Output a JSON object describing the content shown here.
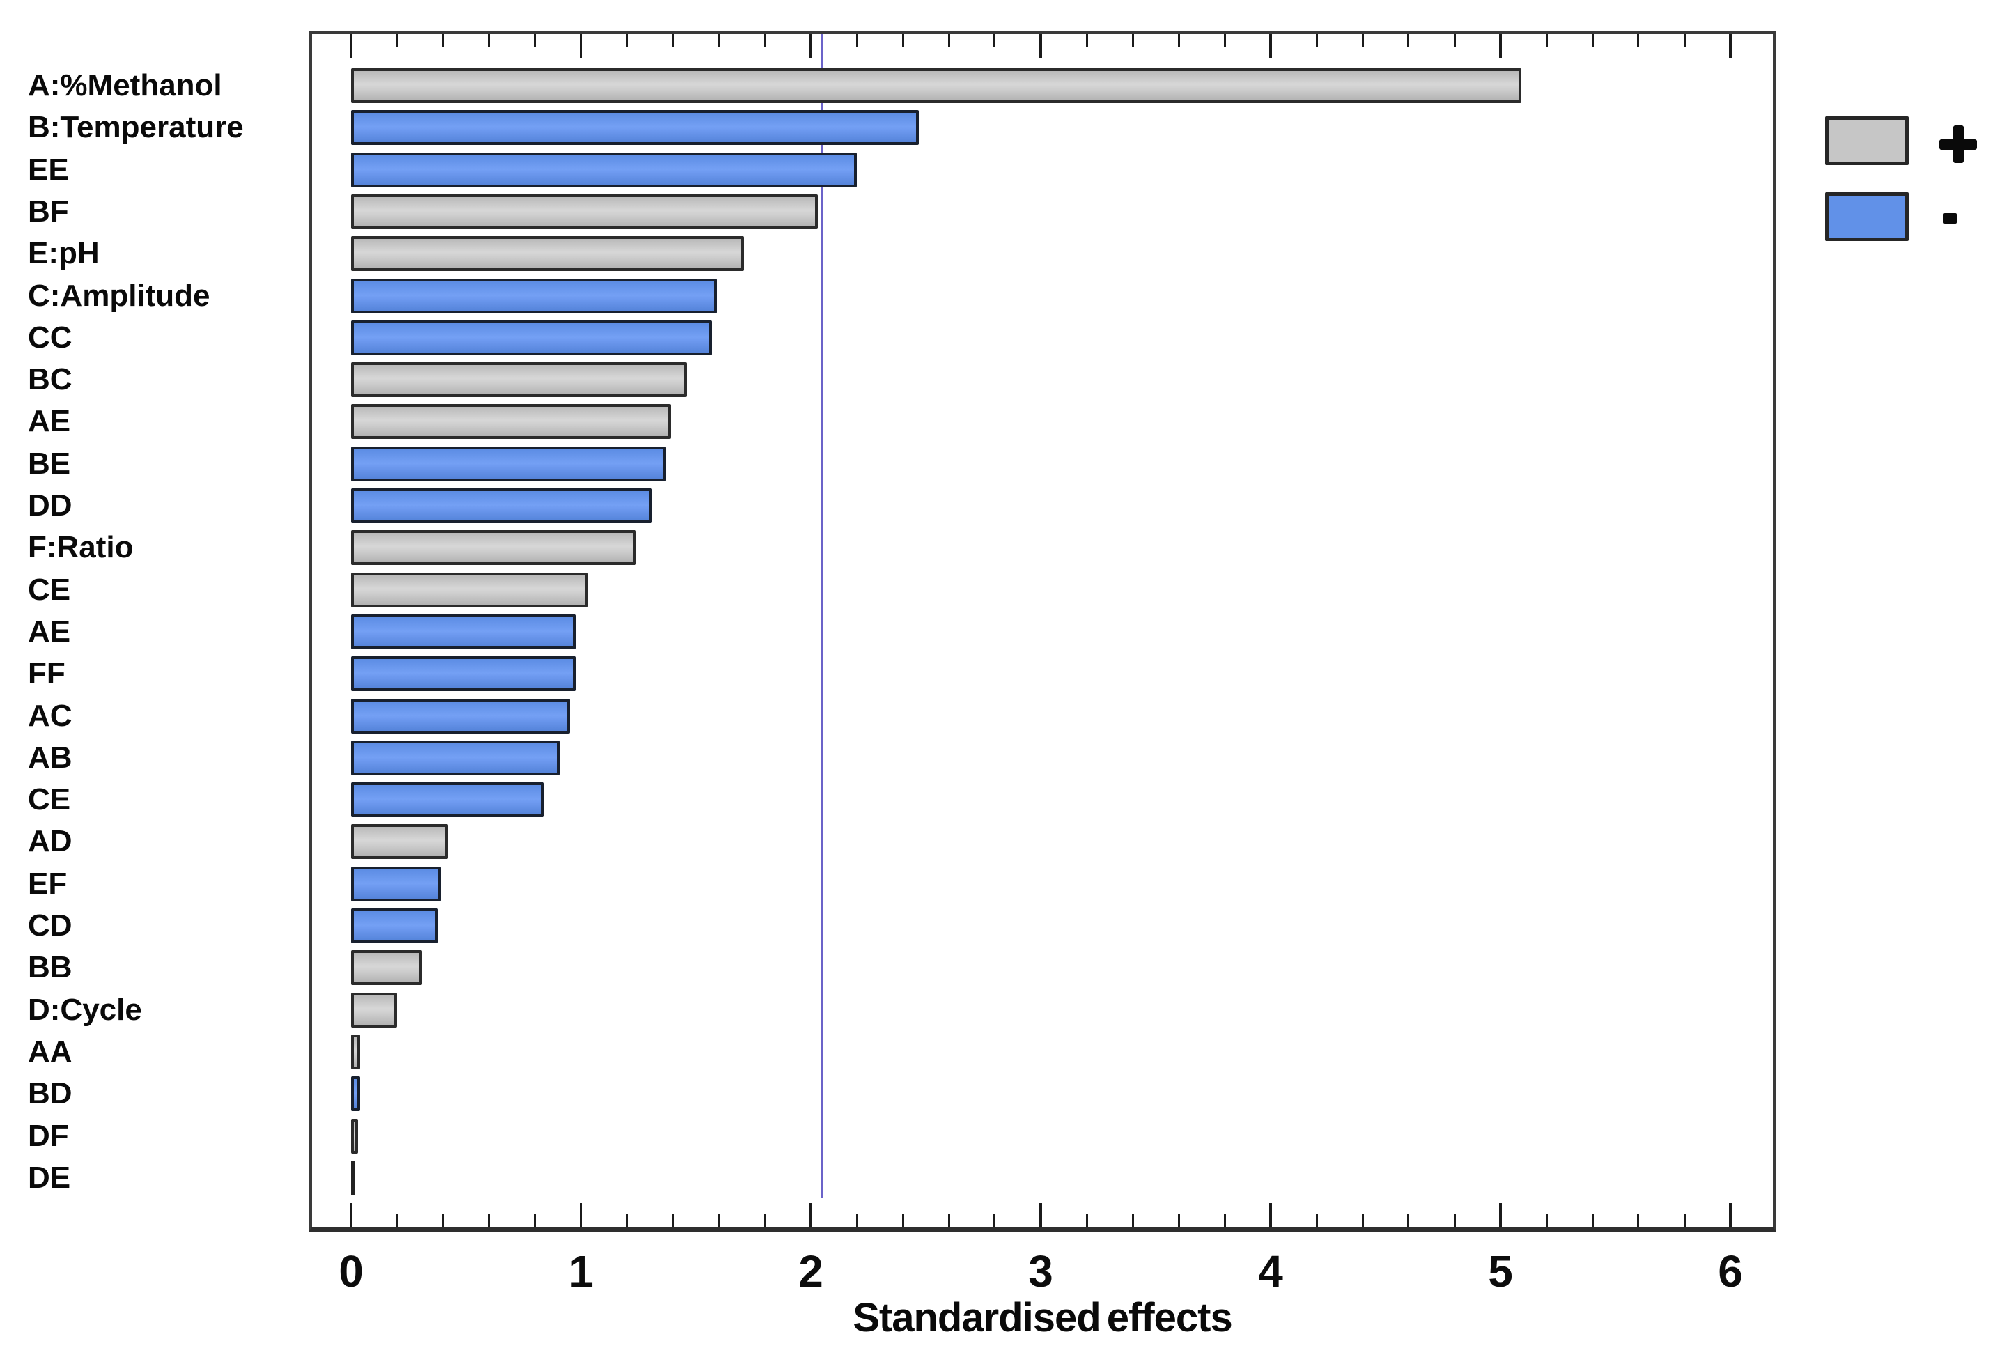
{
  "chart_data": {
    "type": "bar",
    "orientation": "horizontal",
    "title": "",
    "xlabel": "Standardised effects",
    "ylabel": "",
    "xlim": [
      -0.19,
      6.2
    ],
    "x_ticks": [
      0,
      1,
      2,
      3,
      4,
      5,
      6
    ],
    "x_minor_tick_step": 0.2,
    "grid": false,
    "legend_position": "outside-top-right",
    "reference_line": {
      "value": 2.05,
      "color": "#6b63c9"
    },
    "legend": [
      {
        "label": "+",
        "color": "#c6c6c6"
      },
      {
        "label": "-",
        "color": "#6191e8"
      }
    ],
    "bars": [
      {
        "label": "A:%Methanol",
        "value": 5.09,
        "sign": "+"
      },
      {
        "label": "B:Temperature",
        "value": 2.47,
        "sign": "-"
      },
      {
        "label": "EE",
        "value": 2.2,
        "sign": "-"
      },
      {
        "label": "BF",
        "value": 2.03,
        "sign": "+"
      },
      {
        "label": "E:pH",
        "value": 1.71,
        "sign": "+"
      },
      {
        "label": "C:Amplitude",
        "value": 1.59,
        "sign": "-"
      },
      {
        "label": "CC",
        "value": 1.57,
        "sign": "-"
      },
      {
        "label": "BC",
        "value": 1.46,
        "sign": "+"
      },
      {
        "label": "AE",
        "value": 1.39,
        "sign": "+"
      },
      {
        "label": "BE",
        "value": 1.37,
        "sign": "-"
      },
      {
        "label": "DD",
        "value": 1.31,
        "sign": "-"
      },
      {
        "label": "F:Ratio",
        "value": 1.24,
        "sign": "+"
      },
      {
        "label": "CE",
        "value": 1.03,
        "sign": "+"
      },
      {
        "label": "AE",
        "value": 0.98,
        "sign": "-"
      },
      {
        "label": "FF",
        "value": 0.98,
        "sign": "-"
      },
      {
        "label": "AC",
        "value": 0.95,
        "sign": "-"
      },
      {
        "label": "AB",
        "value": 0.91,
        "sign": "-"
      },
      {
        "label": "CE",
        "value": 0.84,
        "sign": "-"
      },
      {
        "label": "AD",
        "value": 0.42,
        "sign": "+"
      },
      {
        "label": "EF",
        "value": 0.39,
        "sign": "-"
      },
      {
        "label": "CD",
        "value": 0.38,
        "sign": "-"
      },
      {
        "label": "BB",
        "value": 0.31,
        "sign": "+"
      },
      {
        "label": "D:Cycle",
        "value": 0.2,
        "sign": "+"
      },
      {
        "label": "AA",
        "value": 0.04,
        "sign": "+"
      },
      {
        "label": "BD",
        "value": 0.04,
        "sign": "-"
      },
      {
        "label": "DF",
        "value": 0.03,
        "sign": "+"
      },
      {
        "label": "DE",
        "value": 0.01,
        "sign": "+"
      }
    ]
  },
  "colors": {
    "positive_fill": "#c6c6c6",
    "negative_fill": "#6191e8",
    "bar_border_positive": "#2b2b2b",
    "bar_border_negative": "#18202e",
    "frame": "#3a3a3a",
    "reference_line": "#6b63c9",
    "text": "#0a0a0a",
    "background": "#ffffff"
  }
}
